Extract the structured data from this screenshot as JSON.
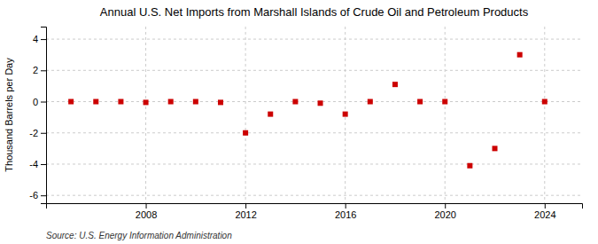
{
  "chart_data": {
    "type": "scatter",
    "title": "Annual U.S. Net Imports from Marshall Islands of Crude Oil and Petroleum Products",
    "y_label": "Thousand Barrels per Day",
    "source": "Source: U.S. Energy Information Administration",
    "x": [
      2005,
      2006,
      2007,
      2008,
      2009,
      2010,
      2011,
      2012,
      2013,
      2014,
      2015,
      2016,
      2017,
      2018,
      2019,
      2020,
      2021,
      2022,
      2023,
      2024
    ],
    "values": [
      0.0,
      0.0,
      0.0,
      -0.05,
      0.0,
      0.0,
      -0.05,
      -2.0,
      -0.8,
      0.0,
      -0.1,
      -0.8,
      0.0,
      1.1,
      0.0,
      0.0,
      -4.1,
      -3.0,
      3.0,
      0.0
    ],
    "color": "#cc0000",
    "marker": "square",
    "xlim": [
      2004.0,
      2025.5
    ],
    "xticks": [
      2008,
      2012,
      2016,
      2020,
      2024
    ],
    "ylim": [
      -6.5,
      4.8
    ],
    "yticks": [
      -6,
      -4,
      -2,
      0,
      2,
      4
    ],
    "grid": true
  }
}
